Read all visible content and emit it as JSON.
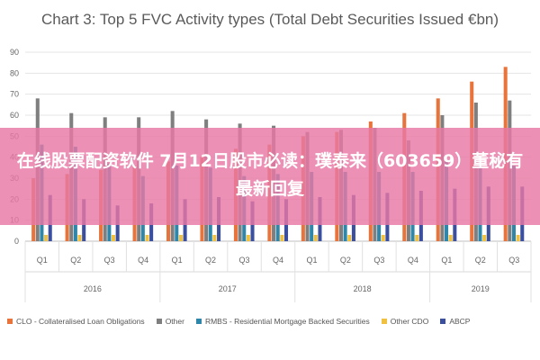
{
  "banner": {
    "text": "在线股票配资软件 7月12日股市必读：璞泰来（603659）董秘有最新回复"
  },
  "chart_data": {
    "type": "bar",
    "title": "Chart 3: Top 5 FVC Activity types (Total Debt Securities Issued €bn)",
    "xlabel": "",
    "ylabel": "",
    "ylim": [
      0,
      90
    ],
    "yticks": [
      0,
      10,
      20,
      30,
      40,
      50,
      60,
      70,
      80,
      90
    ],
    "grid": true,
    "legend_position": "bottom",
    "categories": [
      "Q1",
      "Q2",
      "Q3",
      "Q4",
      "Q1",
      "Q2",
      "Q3",
      "Q4",
      "Q1",
      "Q2",
      "Q3",
      "Q4",
      "Q1",
      "Q2",
      "Q3"
    ],
    "groups": [
      {
        "label": "2016",
        "count": 4
      },
      {
        "label": "2017",
        "count": 4
      },
      {
        "label": "2018",
        "count": 4
      },
      {
        "label": "2019",
        "count": 3
      }
    ],
    "series": [
      {
        "name": "CLO - Collateralised Loan Obligations",
        "color": "#e8743b",
        "values": [
          30,
          32,
          34,
          36,
          38,
          40,
          44,
          46,
          50,
          52,
          57,
          61,
          68,
          76,
          83
        ]
      },
      {
        "name": "Other",
        "color": "#7f7f7f",
        "values": [
          68,
          61,
          59,
          59,
          62,
          58,
          56,
          55,
          52,
          53,
          54,
          48,
          60,
          66,
          67
        ]
      },
      {
        "name": "RMBS - Residential Mortgage Backed Securities",
        "color": "#2e86ab",
        "values": [
          46,
          45,
          37,
          31,
          36,
          35,
          31,
          32,
          33,
          33,
          33,
          33,
          38,
          37,
          36
        ]
      },
      {
        "name": "Other CDO",
        "color": "#f0c040",
        "values": [
          3,
          3,
          3,
          3,
          3,
          3,
          3,
          3,
          3,
          3,
          3,
          3,
          3,
          3,
          3
        ]
      },
      {
        "name": "ABCP",
        "color": "#3a4fa0",
        "values": [
          22,
          20,
          17,
          18,
          20,
          21,
          19,
          20,
          21,
          22,
          23,
          24,
          25,
          26,
          26
        ]
      }
    ]
  }
}
